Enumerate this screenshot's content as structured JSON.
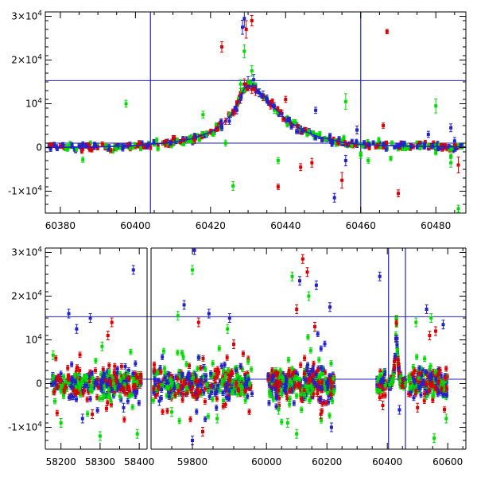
{
  "chart_data": [
    {
      "type": "scatter",
      "title": "",
      "xlabel": "",
      "ylabel": "",
      "xlim": [
        60376,
        60488
      ],
      "ylim": [
        -15000,
        31000
      ],
      "grid": false,
      "x_ticks": [
        60380,
        60400,
        60420,
        60440,
        60460,
        60480
      ],
      "x_tick_labels": [
        "60380",
        "60400",
        "60420",
        "60440",
        "60460",
        "60480"
      ],
      "y_ticks": [
        -10000,
        0,
        10000,
        20000,
        30000
      ],
      "y_tick_labels": [
        {
          "mantissa": "-1×10",
          "exponent": "4"
        },
        {
          "mantissa": "0",
          "exponent": ""
        },
        {
          "mantissa": "10",
          "exponent": "4"
        },
        {
          "mantissa": "2×10",
          "exponent": "4"
        },
        {
          "mantissa": "3×10",
          "exponent": "4"
        }
      ],
      "reference_lines": {
        "horizontal": [
          15300,
          1000
        ],
        "vertical": [
          60404,
          60460
        ],
        "color": "#2222cc"
      },
      "model_curve": {
        "name": "",
        "color": "#2222cc",
        "x": [
          60376,
          60390,
          60400,
          60410,
          60415,
          60420,
          60423,
          60426,
          60428,
          60429,
          60430,
          60431,
          60432,
          60434,
          60436,
          60440,
          60444,
          60448,
          60455,
          60460,
          60470,
          60488
        ],
        "y": [
          0,
          150,
          400,
          1200,
          2000,
          3500,
          5200,
          8000,
          11500,
          13500,
          14200,
          14000,
          13600,
          12000,
          10000,
          6500,
          4200,
          2600,
          1200,
          700,
          300,
          100
        ]
      },
      "series": [
        {
          "color": "#dd0000",
          "x": [
            60380,
            60386,
            60392,
            60396,
            60400,
            60404,
            60406,
            60408,
            60410,
            60412,
            60414,
            60416,
            60418,
            60420,
            60422,
            60424,
            60426,
            60427,
            60428,
            60429,
            60430,
            60431,
            60432,
            60434,
            60436,
            60438,
            60440,
            60442,
            60444,
            60446,
            60448,
            60450,
            60452,
            60454,
            60456,
            60458,
            60462,
            60466,
            60470,
            60474,
            60478,
            60482,
            60486,
            60423,
            60429.5,
            60431,
            60438,
            60447,
            60455,
            60467,
            60470,
            60486,
            60466,
            60440,
            60444
          ],
          "y": [
            300,
            -200,
            500,
            100,
            200,
            0,
            400,
            600,
            900,
            1300,
            1700,
            2300,
            3000,
            3600,
            4800,
            6000,
            8000,
            9800,
            12500,
            14500,
            14000,
            13300,
            12800,
            11500,
            9500,
            8000,
            6400,
            5200,
            4300,
            3300,
            2500,
            1900,
            1400,
            900,
            700,
            400,
            300,
            100,
            0,
            200,
            -100,
            300,
            100,
            23000,
            27000,
            29000,
            -9000,
            -3500,
            -7500,
            26500,
            -10500,
            -4000,
            5000,
            11000,
            -4500
          ],
          "err": [
            500,
            500,
            500,
            500,
            500,
            500,
            500,
            500,
            500,
            500,
            500,
            600,
            600,
            600,
            700,
            700,
            800,
            800,
            1000,
            1200,
            1000,
            900,
            900,
            800,
            700,
            600,
            600,
            600,
            500,
            500,
            500,
            500,
            500,
            500,
            500,
            500,
            500,
            500,
            500,
            500,
            500,
            500,
            500,
            1200,
            2000,
            1200,
            600,
            1000,
            1800,
            500,
            800,
            1800,
            600,
            700,
            800
          ]
        },
        {
          "color": "#00dd00",
          "x": [
            60378,
            60384,
            60388,
            60390,
            60394,
            60398,
            60402,
            60406,
            60410,
            60414,
            60418,
            60422,
            60425,
            60428,
            60431,
            60433,
            60437,
            60442,
            60448,
            60452,
            60456,
            60460,
            60464,
            60468,
            60472,
            60476,
            60480,
            60484,
            60487,
            60386,
            60397.5,
            60418,
            60424,
            60426,
            60429,
            60431,
            60428,
            60456,
            60460,
            60462,
            60480,
            60484,
            60486,
            60438
          ],
          "y": [
            500,
            -500,
            1000,
            300,
            -800,
            200,
            400,
            -300,
            1200,
            1600,
            2700,
            4400,
            7000,
            12000,
            14500,
            12500,
            8500,
            5800,
            2800,
            1500,
            600,
            -1500,
            700,
            -2500,
            500,
            1000,
            -1200,
            -2000,
            300,
            -2800,
            10000,
            7500,
            1000,
            -8800,
            22000,
            17500,
            14500,
            10500,
            -1800,
            -3000,
            9500,
            -3500,
            -14000,
            -3000
          ],
          "err": [
            500,
            500,
            500,
            500,
            500,
            500,
            500,
            500,
            500,
            500,
            500,
            600,
            700,
            900,
            1000,
            900,
            700,
            600,
            500,
            500,
            500,
            500,
            500,
            500,
            500,
            500,
            500,
            500,
            500,
            600,
            800,
            800,
            700,
            1000,
            1500,
            1200,
            1000,
            1800,
            700,
            600,
            1600,
            1000,
            800,
            700
          ]
        },
        {
          "color": "#2222cc",
          "x": [
            60377,
            60381,
            60385,
            60389,
            60393,
            60397,
            60401,
            60405,
            60409,
            60413,
            60417,
            60419,
            60421,
            60423,
            60425,
            60427,
            60428,
            60429,
            60430,
            60431,
            60432,
            60433,
            60435,
            60437,
            60439,
            60441,
            60443,
            60445,
            60447,
            60449,
            60451,
            60453,
            60455,
            60457,
            60459,
            60461,
            60465,
            60469,
            60473,
            60477,
            60481,
            60485,
            60487,
            60428.5,
            60429,
            60431.5,
            60448,
            60453,
            60456,
            60459,
            60478,
            60484,
            60485,
            60434
          ],
          "y": [
            400,
            200,
            300,
            0,
            200,
            300,
            500,
            800,
            1100,
            1500,
            2200,
            2900,
            3500,
            4400,
            6000,
            8500,
            11000,
            13500,
            15000,
            14200,
            13500,
            12500,
            11200,
            9500,
            7800,
            6300,
            5100,
            4100,
            3300,
            2500,
            1800,
            1300,
            900,
            700,
            500,
            300,
            200,
            100,
            0,
            200,
            100,
            300,
            500,
            27500,
            29500,
            15500,
            8500,
            -11500,
            -3000,
            4000,
            3000,
            4500,
            1500,
            12000
          ],
          "err": [
            500,
            500,
            500,
            500,
            500,
            500,
            500,
            500,
            500,
            500,
            500,
            600,
            600,
            600,
            700,
            800,
            900,
            1000,
            1200,
            1100,
            1000,
            900,
            800,
            700,
            700,
            600,
            600,
            500,
            500,
            500,
            500,
            500,
            500,
            500,
            500,
            500,
            500,
            500,
            500,
            500,
            500,
            500,
            500,
            1600,
            2000,
            1200,
            700,
            1000,
            1200,
            900,
            700,
            900,
            800,
            900
          ]
        }
      ]
    },
    {
      "type": "scatter",
      "title": "",
      "xlabel": "",
      "ylabel": "",
      "broken_axis": true,
      "ylim": [
        -15000,
        31000
      ],
      "grid": false,
      "x_segments": [
        {
          "xlim": [
            58160,
            58420
          ],
          "ticks": [
            58200,
            58300,
            58400
          ],
          "tick_labels": [
            "58200",
            "58300",
            "58400"
          ]
        },
        {
          "xlim": [
            59700,
            59950
          ],
          "ticks": [
            59800
          ],
          "tick_labels": [
            "59800"
          ]
        },
        {
          "xlim": [
            59960,
            60660
          ],
          "ticks": [
            60000,
            60200,
            60400,
            60600
          ],
          "tick_labels": [
            "60000",
            "60200",
            "60400",
            "60600"
          ]
        }
      ],
      "y_ticks": [
        -10000,
        0,
        10000,
        20000,
        30000
      ],
      "y_tick_labels": [
        {
          "mantissa": "-1×10",
          "exponent": "4"
        },
        {
          "mantissa": "0",
          "exponent": ""
        },
        {
          "mantissa": "10",
          "exponent": "4"
        },
        {
          "mantissa": "2×10",
          "exponent": "4"
        },
        {
          "mantissa": "3×10",
          "exponent": "4"
        }
      ],
      "reference_lines": {
        "horizontal": [
          15300,
          1000
        ],
        "vertical": [
          60404,
          60460
        ],
        "color": "#2222cc"
      },
      "clusters": [
        {
          "segment": 0,
          "x_range": [
            58175,
            58405
          ],
          "core_spread": 1500,
          "outliers": [
            {
              "c": 2,
              "x": 58385,
              "y": 26000
            },
            {
              "c": 2,
              "x": 58220,
              "y": 16000
            },
            {
              "c": 2,
              "x": 58275,
              "y": 15000
            },
            {
              "c": 2,
              "x": 58240,
              "y": 12500
            },
            {
              "c": 0,
              "x": 58330,
              "y": 14000
            },
            {
              "c": 1,
              "x": 58305,
              "y": 8500
            },
            {
              "c": 1,
              "x": 58180,
              "y": 6500
            },
            {
              "c": 1,
              "x": 58300,
              "y": -12000
            },
            {
              "c": 2,
              "x": 58255,
              "y": -8000
            },
            {
              "c": 1,
              "x": 58395,
              "y": -11500
            },
            {
              "c": 0,
              "x": 58320,
              "y": 11000
            },
            {
              "c": 1,
              "x": 58200,
              "y": -9000
            },
            {
              "c": 2,
              "x": 58360,
              "y": -5500
            },
            {
              "c": 0,
              "x": 58280,
              "y": -7000
            }
          ]
        },
        {
          "segment": 1,
          "x_range": [
            59705,
            59945
          ],
          "core_spread": 1800,
          "outliers": [
            {
              "c": 2,
              "x": 59780,
              "y": 18000
            },
            {
              "c": 2,
              "x": 59840,
              "y": 16000
            },
            {
              "c": 1,
              "x": 59765,
              "y": 15500
            },
            {
              "c": 0,
              "x": 59815,
              "y": 14000
            },
            {
              "c": 1,
              "x": 59885,
              "y": 12500
            },
            {
              "c": 2,
              "x": 59890,
              "y": 15000
            },
            {
              "c": 1,
              "x": 59800,
              "y": 26000
            },
            {
              "c": 2,
              "x": 59805,
              "y": 30500
            },
            {
              "c": 1,
              "x": 59860,
              "y": -8000
            },
            {
              "c": 2,
              "x": 59800,
              "y": -13000
            },
            {
              "c": 0,
              "x": 59825,
              "y": -11000
            },
            {
              "c": 1,
              "x": 59750,
              "y": -6500
            },
            {
              "c": 0,
              "x": 59900,
              "y": 9000
            },
            {
              "c": 2,
              "x": 59720,
              "y": -4000
            }
          ]
        },
        {
          "segment": 2,
          "x_range": [
            60005,
            60225
          ],
          "core_spread": 1800,
          "outliers": [
            {
              "c": 0,
              "x": 60120,
              "y": 28500
            },
            {
              "c": 0,
              "x": 60135,
              "y": 25500
            },
            {
              "c": 2,
              "x": 60110,
              "y": 23500
            },
            {
              "c": 2,
              "x": 60165,
              "y": 22500
            },
            {
              "c": 1,
              "x": 60085,
              "y": 24500
            },
            {
              "c": 0,
              "x": 60100,
              "y": 17000
            },
            {
              "c": 1,
              "x": 60140,
              "y": 20000
            },
            {
              "c": 2,
              "x": 60210,
              "y": 17500
            },
            {
              "c": 0,
              "x": 60160,
              "y": 13000
            },
            {
              "c": 1,
              "x": 60070,
              "y": -9000
            },
            {
              "c": 2,
              "x": 60215,
              "y": -10000
            },
            {
              "c": 1,
              "x": 60100,
              "y": -11500
            },
            {
              "c": 0,
              "x": 60180,
              "y": -7000
            },
            {
              "c": 1,
              "x": 60040,
              "y": -6000
            }
          ]
        },
        {
          "segment": 2,
          "x_range": [
            60365,
            60395
          ],
          "core_spread": 1200,
          "outliers": [
            {
              "c": 2,
              "x": 60375,
              "y": 24500
            },
            {
              "c": 0,
              "x": 60385,
              "y": -5000
            }
          ]
        },
        {
          "segment": 2,
          "x_range": [
            60470,
            60600
          ],
          "core_spread": 1400,
          "outliers": [
            {
              "c": 2,
              "x": 60530,
              "y": 17000
            },
            {
              "c": 0,
              "x": 60560,
              "y": 12000
            },
            {
              "c": 0,
              "x": 60540,
              "y": 11000
            },
            {
              "c": 1,
              "x": 60495,
              "y": 14000
            },
            {
              "c": 1,
              "x": 60545,
              "y": 15000
            },
            {
              "c": 2,
              "x": 60585,
              "y": 13500
            },
            {
              "c": 1,
              "x": 60555,
              "y": -12500
            },
            {
              "c": 0,
              "x": 60500,
              "y": -5500
            },
            {
              "c": 2,
              "x": 60440,
              "y": -6000
            },
            {
              "c": 1,
              "x": 60595,
              "y": -8000
            }
          ]
        }
      ],
      "burst": {
        "x_range": [
          60404,
          60460
        ],
        "peak_x": 60430,
        "peak_y": 15000
      }
    }
  ]
}
